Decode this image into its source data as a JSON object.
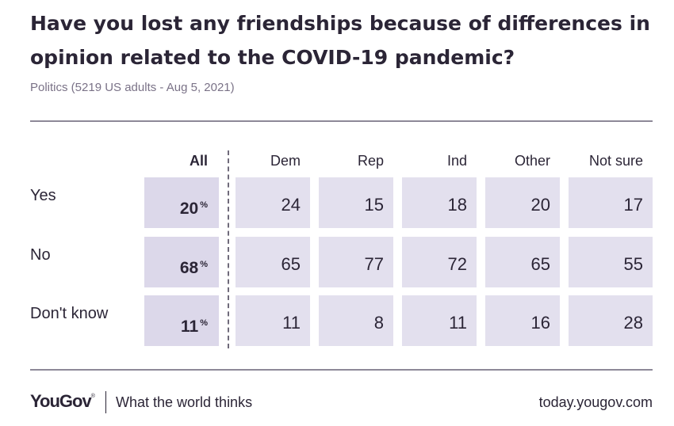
{
  "title": "Have you lost any friendships because of differences in opinion related to the COVID-19 pandemic?",
  "subtitle": "Politics (5219 US adults - Aug 5, 2021)",
  "chart_data": {
    "type": "table",
    "columns": [
      "All",
      "Dem",
      "Rep",
      "Ind",
      "Other",
      "Not sure"
    ],
    "rows": [
      {
        "label": "Yes",
        "all": "20",
        "values": [
          "24",
          "15",
          "18",
          "20",
          "17"
        ]
      },
      {
        "label": "No",
        "all": "68",
        "values": [
          "65",
          "77",
          "72",
          "65",
          "55"
        ]
      },
      {
        "label": "Don't know",
        "all": "11",
        "values": [
          "11",
          "8",
          "11",
          "16",
          "28"
        ]
      }
    ],
    "unit": "%"
  },
  "footer": {
    "logo": "YouGov",
    "logo_mark": "®",
    "tagline": "What the world thinks",
    "url": "today.yougov.com"
  },
  "colors": {
    "cell": "#e3e0ee",
    "cell_all": "#dcd8ea",
    "text": "#2b2536"
  }
}
